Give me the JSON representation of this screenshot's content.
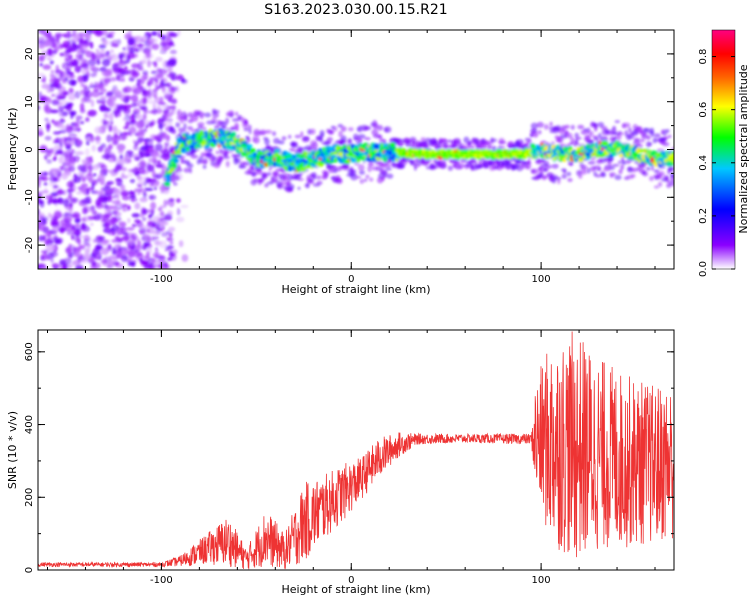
{
  "title": "S163.2023.030.00.15.R21",
  "chart_data": [
    {
      "type": "heatmap",
      "xlabel": "Height of straight line (km)",
      "ylabel": "Frequency (Hz)",
      "xlim": [
        -165,
        170
      ],
      "ylim": [
        -25,
        25
      ],
      "xticks": [
        -100,
        0,
        100
      ],
      "yticks": [
        -20,
        -10,
        0,
        10,
        20
      ],
      "colorbar": {
        "label": "Normalized spectral amplitude",
        "range": [
          0,
          0.9
        ],
        "ticks": [
          "0.0",
          "0.2",
          "0.4",
          "0.6",
          "0.8"
        ],
        "colors": [
          "#ffffff",
          "#8a00ff",
          "#0000ff",
          "#00c8ff",
          "#00ff00",
          "#ffff00",
          "#ff6600",
          "#ff0000",
          "#ff0080"
        ]
      },
      "noise_region": {
        "x": [
          -165,
          -93
        ],
        "y": [
          -25,
          25
        ],
        "amplitude": 0.12
      },
      "ridge": [
        {
          "x": -95,
          "y": -4
        },
        {
          "x": -90,
          "y": 1
        },
        {
          "x": -80,
          "y": 2
        },
        {
          "x": -70,
          "y": 2.5
        },
        {
          "x": -60,
          "y": 1.5
        },
        {
          "x": -50,
          "y": -2
        },
        {
          "x": -40,
          "y": -1.5
        },
        {
          "x": -30,
          "y": -3
        },
        {
          "x": -20,
          "y": -2
        },
        {
          "x": -10,
          "y": -1
        },
        {
          "x": 0,
          "y": -1
        },
        {
          "x": 10,
          "y": -0.5
        },
        {
          "x": 20,
          "y": -0.5
        },
        {
          "x": 40,
          "y": -1
        },
        {
          "x": 60,
          "y": -1
        },
        {
          "x": 80,
          "y": -1
        },
        {
          "x": 90,
          "y": -1
        },
        {
          "x": 100,
          "y": 0
        },
        {
          "x": 110,
          "y": -1
        },
        {
          "x": 120,
          "y": -1
        },
        {
          "x": 130,
          "y": 0
        },
        {
          "x": 140,
          "y": 0
        },
        {
          "x": 150,
          "y": -1
        },
        {
          "x": 160,
          "y": -2
        },
        {
          "x": 170,
          "y": -2
        }
      ]
    },
    {
      "type": "line",
      "xlabel": "Height of straight line (km)",
      "ylabel": "SNR (10 * v/v)",
      "xlim": [
        -165,
        170
      ],
      "ylim": [
        0,
        660
      ],
      "xticks": [
        -100,
        0,
        100
      ],
      "yticks": [
        0,
        200,
        400,
        600
      ],
      "color": "#ee3333",
      "envelope": [
        {
          "x": -165,
          "mean": 15,
          "jitter": 6
        },
        {
          "x": -100,
          "mean": 15,
          "jitter": 6
        },
        {
          "x": -90,
          "mean": 25,
          "jitter": 15
        },
        {
          "x": -75,
          "mean": 60,
          "jitter": 45
        },
        {
          "x": -65,
          "mean": 80,
          "jitter": 70
        },
        {
          "x": -55,
          "mean": 30,
          "jitter": 30
        },
        {
          "x": -45,
          "mean": 90,
          "jitter": 80
        },
        {
          "x": -35,
          "mean": 50,
          "jitter": 50
        },
        {
          "x": -25,
          "mean": 130,
          "jitter": 110
        },
        {
          "x": -15,
          "mean": 170,
          "jitter": 90
        },
        {
          "x": -5,
          "mean": 210,
          "jitter": 80
        },
        {
          "x": 5,
          "mean": 250,
          "jitter": 60
        },
        {
          "x": 15,
          "mean": 310,
          "jitter": 55
        },
        {
          "x": 25,
          "mean": 345,
          "jitter": 35
        },
        {
          "x": 35,
          "mean": 360,
          "jitter": 15
        },
        {
          "x": 60,
          "mean": 362,
          "jitter": 12
        },
        {
          "x": 95,
          "mean": 360,
          "jitter": 15
        },
        {
          "x": 97,
          "mean": 360,
          "jitter": 160
        },
        {
          "x": 105,
          "mean": 350,
          "jitter": 280
        },
        {
          "x": 118,
          "mean": 340,
          "jitter": 320
        },
        {
          "x": 130,
          "mean": 320,
          "jitter": 270
        },
        {
          "x": 145,
          "mean": 300,
          "jitter": 240
        },
        {
          "x": 160,
          "mean": 290,
          "jitter": 220
        },
        {
          "x": 170,
          "mean": 300,
          "jitter": 220
        }
      ]
    }
  ]
}
